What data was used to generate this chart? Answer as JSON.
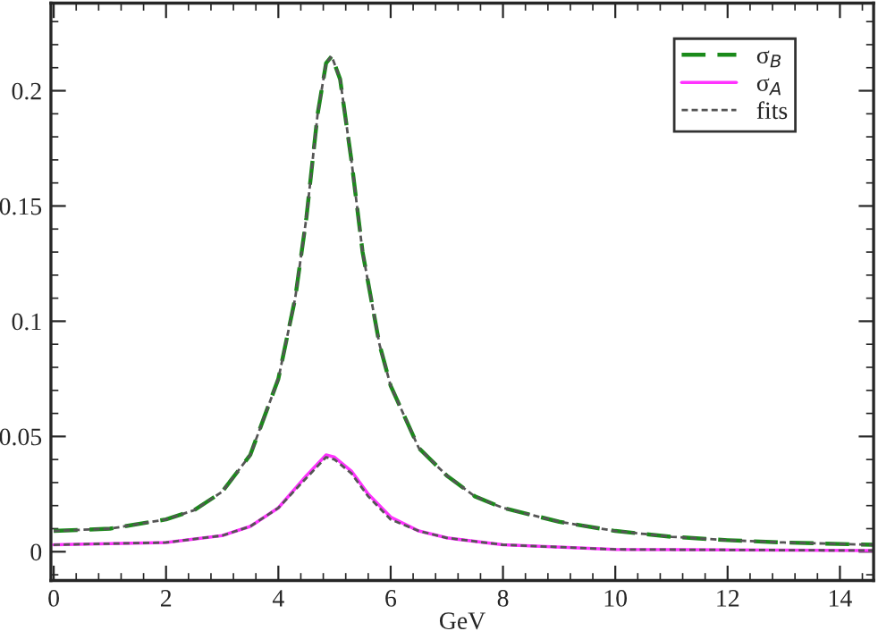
{
  "chart_data": {
    "type": "line",
    "xlabel": "GeV",
    "xlim": [
      -0.05,
      14.6
    ],
    "ylim": [
      -0.0125,
      0.238
    ],
    "xticks": [
      0,
      2,
      4,
      6,
      8,
      10,
      12,
      14
    ],
    "yticks": [
      0,
      0.05,
      0.1,
      0.15,
      0.2
    ],
    "grid": false,
    "legend": "top right",
    "series": [
      {
        "name": "σ$_{B}$",
        "color": "#1a8a1a",
        "line_style": "dashed",
        "x": [
          0,
          1,
          2,
          2.5,
          3,
          3.5,
          4,
          4.3,
          4.5,
          4.7,
          4.85,
          4.95,
          5.1,
          5.3,
          5.5,
          5.8,
          6,
          6.5,
          7,
          7.5,
          8,
          9,
          10,
          11,
          12,
          13,
          14.6
        ],
        "values": [
          0.009,
          0.01,
          0.014,
          0.018,
          0.026,
          0.042,
          0.075,
          0.11,
          0.145,
          0.19,
          0.212,
          0.215,
          0.205,
          0.17,
          0.13,
          0.09,
          0.072,
          0.045,
          0.033,
          0.024,
          0.019,
          0.013,
          0.009,
          0.0065,
          0.005,
          0.004,
          0.003
        ]
      },
      {
        "name": "σ$_{A}$",
        "color": "#ff33ff",
        "line_style": "solid",
        "x": [
          0,
          2,
          3,
          3.5,
          4,
          4.5,
          4.85,
          5,
          5.3,
          5.6,
          6,
          6.5,
          7,
          8,
          10,
          14.6
        ],
        "values": [
          0.003,
          0.004,
          0.007,
          0.011,
          0.019,
          0.033,
          0.042,
          0.041,
          0.035,
          0.025,
          0.015,
          0.009,
          0.006,
          0.003,
          0.001,
          0.0005
        ]
      },
      {
        "name": "fits",
        "color": "#555555",
        "line_style": "dotted",
        "x": [
          0,
          1,
          2,
          2.5,
          3,
          3.5,
          4,
          4.3,
          4.5,
          4.7,
          4.85,
          4.95,
          5.1,
          5.3,
          5.5,
          5.8,
          6,
          6.5,
          7,
          7.5,
          8,
          9,
          10,
          11,
          12,
          13,
          14.6
        ],
        "values": [
          0.009,
          0.01,
          0.014,
          0.018,
          0.026,
          0.042,
          0.075,
          0.11,
          0.145,
          0.19,
          0.212,
          0.215,
          0.205,
          0.17,
          0.13,
          0.09,
          0.072,
          0.045,
          0.033,
          0.024,
          0.019,
          0.013,
          0.009,
          0.0065,
          0.005,
          0.004,
          0.003
        ]
      },
      {
        "color": "#555555",
        "line_style": "dotted",
        "x": [
          0,
          2,
          3,
          3.5,
          4,
          4.5,
          4.85,
          5,
          5.3,
          5.6,
          6,
          6.5,
          7,
          8,
          10,
          14.6
        ],
        "values": [
          0.003,
          0.004,
          0.007,
          0.011,
          0.019,
          0.032,
          0.041,
          0.04,
          0.034,
          0.024,
          0.014,
          0.009,
          0.006,
          0.003,
          0.001,
          0.0005
        ]
      }
    ]
  }
}
